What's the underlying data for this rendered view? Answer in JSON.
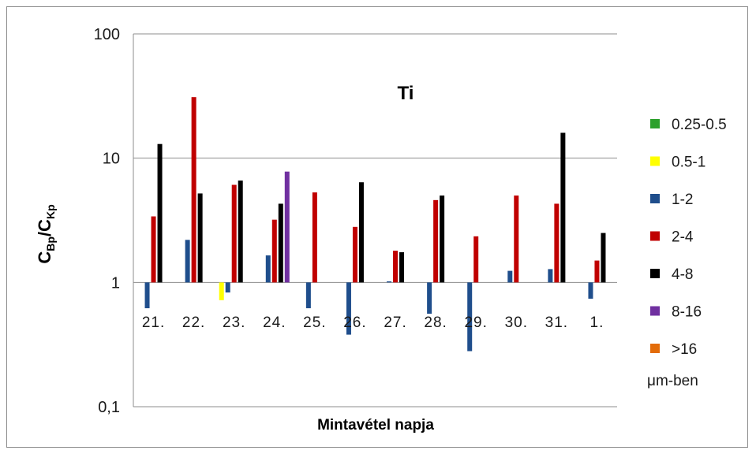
{
  "chart_data": {
    "type": "bar",
    "title": "Ti",
    "xlabel": "Mintavétel napja",
    "ylabel": {
      "main1": "C",
      "sub1": "Bp",
      "slash": "/",
      "main2": "C",
      "sub2": "Kp"
    },
    "yscale": "log",
    "ylim": [
      0.1,
      100
    ],
    "baseline": 1,
    "yticks": [
      "0,1",
      "1",
      "10",
      "100"
    ],
    "categories": [
      "21.",
      "22.",
      "23.",
      "24.",
      "25.",
      "26.",
      "27.",
      "28.",
      "29.",
      "30.",
      "31.",
      "1."
    ],
    "series": [
      {
        "name": "0.25-0.5",
        "color": "#2ca02c",
        "values": [
          null,
          null,
          null,
          null,
          null,
          null,
          null,
          null,
          null,
          null,
          null,
          null
        ]
      },
      {
        "name": "0.5-1",
        "color": "#ffff00",
        "values": [
          null,
          null,
          0.72,
          null,
          null,
          null,
          null,
          null,
          null,
          null,
          null,
          null
        ]
      },
      {
        "name": "1-2",
        "color": "#1f4e8c",
        "values": [
          0.62,
          2.2,
          0.83,
          1.65,
          0.62,
          0.38,
          1.02,
          0.56,
          0.28,
          1.24,
          1.28,
          0.74
        ]
      },
      {
        "name": "2-4",
        "color": "#c00000",
        "values": [
          3.4,
          31,
          6.1,
          3.2,
          5.3,
          2.8,
          1.8,
          4.6,
          2.35,
          5.0,
          4.3,
          1.5
        ]
      },
      {
        "name": "4-8",
        "color": "#000000",
        "values": [
          13,
          5.2,
          6.6,
          4.3,
          null,
          6.4,
          1.75,
          5.0,
          null,
          null,
          16,
          2.5
        ]
      },
      {
        "name": "8-16",
        "color": "#7030a0",
        "values": [
          null,
          null,
          null,
          7.8,
          null,
          null,
          null,
          null,
          null,
          null,
          null,
          null
        ]
      },
      {
        "name": ">16",
        "color": "#e36c09",
        "values": [
          null,
          null,
          null,
          null,
          null,
          null,
          null,
          null,
          null,
          null,
          null,
          null
        ]
      }
    ],
    "legend": {
      "position": "right",
      "unit_note": "μm-ben"
    },
    "grid": true
  }
}
